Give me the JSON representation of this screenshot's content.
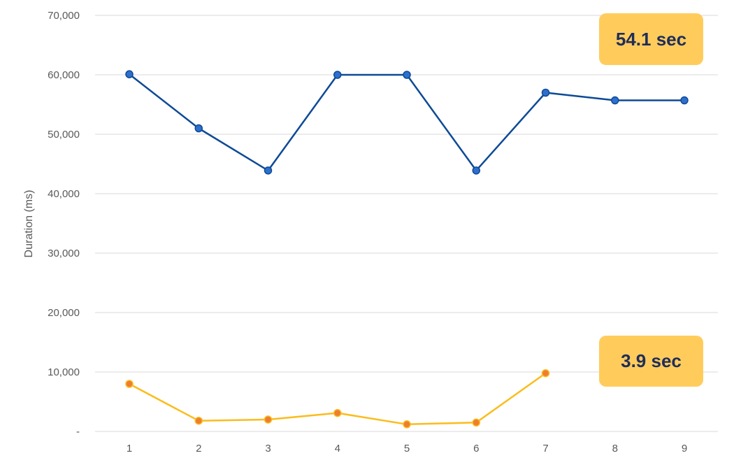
{
  "chart_data": {
    "type": "line",
    "ylabel": "Duration (ms)",
    "xlabel": "",
    "x": [
      1,
      2,
      3,
      4,
      5,
      6,
      7,
      8,
      9
    ],
    "ylim": [
      0,
      70000
    ],
    "yticks": [
      0,
      10000,
      20000,
      30000,
      40000,
      50000,
      60000,
      70000
    ],
    "ytick_labels": [
      "-",
      "10,000",
      "20,000",
      "30,000",
      "40,000",
      "50,000",
      "60,000",
      "70,000"
    ],
    "grid": true,
    "series": [
      {
        "color": "#0e4a96",
        "marker_color": "#2e6fce",
        "values": [
          60100,
          51000,
          43900,
          60000,
          60000,
          43900,
          57000,
          55700,
          55700
        ]
      },
      {
        "color": "#fbbc1c",
        "marker_color": "#ee7d31",
        "values": [
          8000,
          1800,
          2000,
          3100,
          1200,
          1500,
          9800,
          null,
          null
        ]
      }
    ],
    "annotations": [
      "54.1 sec",
      "3.9 sec"
    ]
  }
}
